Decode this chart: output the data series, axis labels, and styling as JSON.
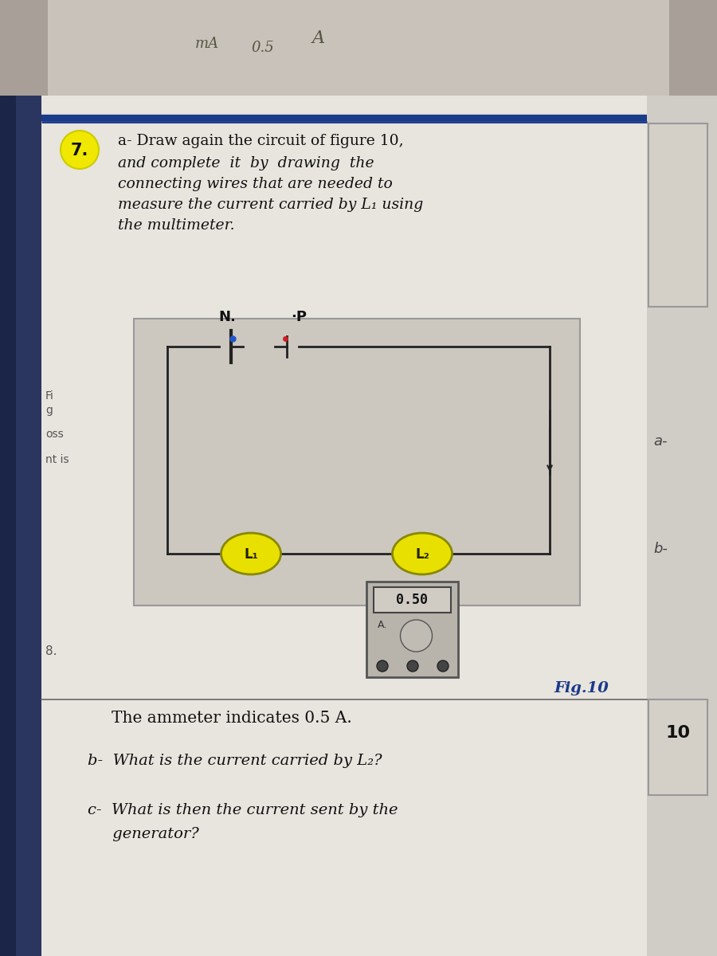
{
  "bg_top_photo": "#b8b0a8",
  "bg_page": "#dedad4",
  "bg_cream": "#e8e4de",
  "sidebar_blue": "#2a3560",
  "sidebar_blue2": "#1a2548",
  "right_page_bg": "#dedad4",
  "blue_line": "#1a3a8a",
  "question_circle_bg": "#f0e800",
  "question_number": "7.",
  "part_a_line1": "a- Draw again the circuit of figure 10,",
  "part_a_line2": "and complete  it  by  drawing  the",
  "part_a_line3": "connecting wires that are needed to",
  "part_a_line4": "measure the current carried by L₁ using",
  "part_a_line5": "the multimeter.",
  "N_label": "N.",
  "P_label": "·P",
  "L1_label": "L₁",
  "L2_label": "L₂",
  "bulb_yellow": "#e8e000",
  "bulb_yellow_light": "#f5f080",
  "wire_color": "#222222",
  "circuit_bg": "#ccc8c0",
  "ammeter_display": "0.50",
  "ammeter_bg": "#b8b4ac",
  "ammeter_screen_bg": "#d0ccc4",
  "fig_label": "Fig.10",
  "fig_color": "#1a3a8a",
  "sep_line_color": "#666666",
  "text_dark": "#111111",
  "text_gray": "#444444",
  "ammeter_indicates": "The ammeter indicates 0.5 A.",
  "part_b_text": "b-  What is the current carried by L₂?",
  "part_c_line1": "c-  What is then the current sent by the",
  "part_c_line2": "     generator?",
  "right_label_a": "a-",
  "right_label_b": "b-",
  "right_num": "10",
  "handwrite_color": "#555540",
  "photo_top_color": "#a8a098",
  "left_text_color": "#555555",
  "fig_text_left1": "Fi",
  "fig_text_left2": "g",
  "fig_text_left3": "oss",
  "fig_text_left4": "nt is",
  "side_label_8": "8."
}
